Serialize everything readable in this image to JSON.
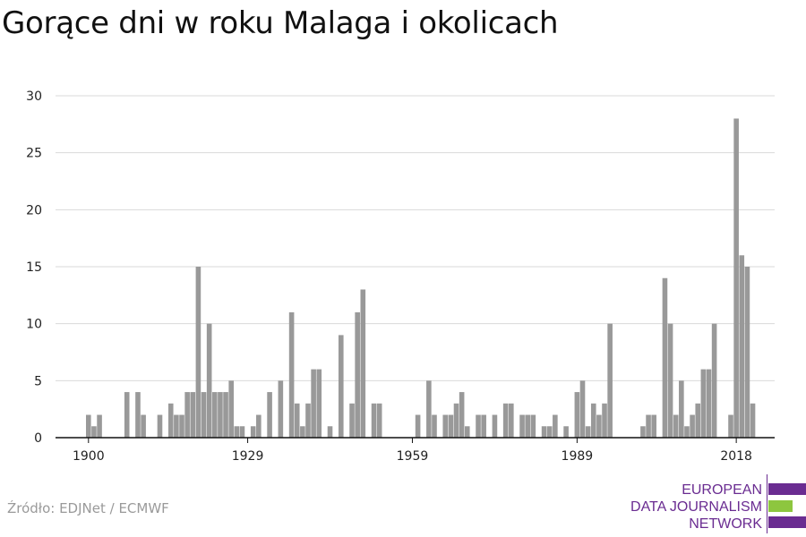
{
  "page": {
    "title": "Gorące dni w roku Malaga i okolicach",
    "source": "Źródło: EDJNet / ECMWF"
  },
  "logo": {
    "line1": "EUROPEAN",
    "line2": "DATA JOURNALISM",
    "line3": "NETWORK",
    "colors": {
      "purple": "#6a2c91",
      "green": "#8dc63f"
    }
  },
  "chart_data": {
    "type": "bar",
    "title": "Gorące dni w roku Malaga i okolicach",
    "xlabel": "",
    "ylabel": "",
    "x_ticks": [
      "1900",
      "1929",
      "1959",
      "1989",
      "2018"
    ],
    "y_ticks": [
      "0",
      "5",
      "10",
      "15",
      "20",
      "25",
      "30"
    ],
    "ylim": [
      0,
      30
    ],
    "grid": true,
    "bar_color": "#999999",
    "categories": [
      1900,
      1901,
      1902,
      1903,
      1904,
      1905,
      1906,
      1907,
      1908,
      1909,
      1910,
      1911,
      1912,
      1913,
      1914,
      1915,
      1916,
      1917,
      1918,
      1919,
      1920,
      1921,
      1922,
      1923,
      1924,
      1925,
      1926,
      1927,
      1928,
      1929,
      1930,
      1931,
      1932,
      1933,
      1934,
      1935,
      1936,
      1937,
      1938,
      1939,
      1940,
      1941,
      1942,
      1943,
      1944,
      1945,
      1946,
      1947,
      1948,
      1949,
      1950,
      1951,
      1952,
      1953,
      1954,
      1955,
      1956,
      1957,
      1958,
      1959,
      1960,
      1961,
      1962,
      1963,
      1964,
      1965,
      1966,
      1967,
      1968,
      1969,
      1970,
      1971,
      1972,
      1973,
      1974,
      1975,
      1976,
      1977,
      1978,
      1979,
      1980,
      1981,
      1982,
      1983,
      1984,
      1985,
      1986,
      1987,
      1988,
      1989,
      1990,
      1991,
      1992,
      1993,
      1994,
      1995,
      1996,
      1997,
      1998,
      1999,
      2000,
      2001,
      2002,
      2003,
      2004,
      2005,
      2006,
      2007,
      2008,
      2009,
      2010,
      2011,
      2012,
      2013,
      2014,
      2015,
      2016,
      2017,
      2018,
      2019,
      2020,
      2021
    ],
    "values": [
      2,
      1,
      2,
      0,
      0,
      0,
      0,
      4,
      0,
      4,
      2,
      0,
      0,
      2,
      0,
      3,
      2,
      2,
      4,
      4,
      15,
      4,
      10,
      4,
      4,
      4,
      5,
      1,
      1,
      0,
      1,
      2,
      0,
      4,
      0,
      5,
      0,
      11,
      3,
      1,
      3,
      6,
      6,
      0,
      1,
      0,
      9,
      0,
      3,
      11,
      13,
      0,
      3,
      3,
      0,
      0,
      0,
      0,
      0,
      0,
      2,
      0,
      5,
      2,
      0,
      2,
      2,
      3,
      4,
      1,
      0,
      2,
      2,
      0,
      2,
      0,
      3,
      3,
      0,
      2,
      2,
      2,
      0,
      1,
      1,
      2,
      0,
      1,
      0,
      4,
      5,
      1,
      3,
      2,
      3,
      10,
      0,
      0,
      0,
      0,
      0,
      1,
      2,
      2,
      0,
      14,
      10,
      2,
      5,
      1,
      2,
      3,
      6,
      6,
      10,
      0,
      0,
      2,
      28,
      16,
      15,
      3
    ]
  }
}
